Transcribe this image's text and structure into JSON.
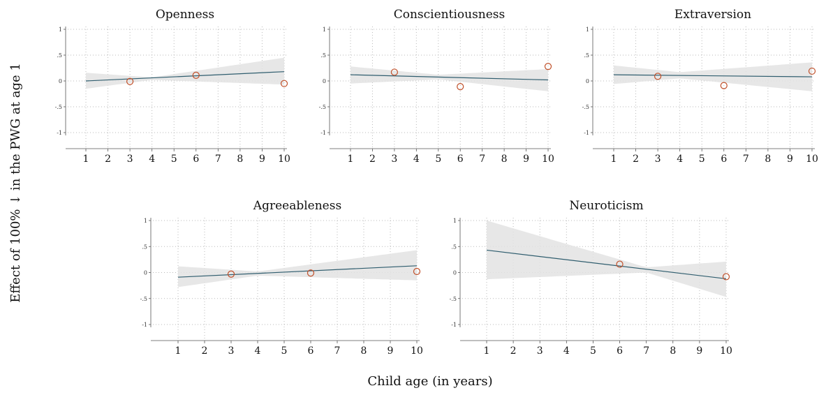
{
  "figure": {
    "ylabel": "Effect of 100% ↓ in the PWG at age 1",
    "xlabel": "Child age (in years)"
  },
  "colors": {
    "band": "#e3e3e3",
    "line": "#2f5d6e",
    "marker": "#c0502a",
    "grid": "#b9b9b9",
    "axis": "#555555"
  },
  "chart_data": [
    {
      "type": "line",
      "title": "Openness",
      "x_ticks": [
        1,
        2,
        3,
        4,
        5,
        6,
        7,
        8,
        9,
        10
      ],
      "y_ticks": [
        1,
        0.5,
        0,
        -0.5,
        -1
      ],
      "y_tick_labels": [
        "1",
        ".5",
        "0",
        "-.5",
        "-1"
      ],
      "xlim": [
        1,
        10
      ],
      "ylim": [
        -1,
        1
      ],
      "grid": true,
      "fit": {
        "x": [
          1,
          10
        ],
        "y": [
          0.0,
          0.18
        ]
      },
      "ci": {
        "x": [
          1,
          4,
          10
        ],
        "lower": [
          -0.15,
          0.02,
          -0.07
        ],
        "upper": [
          0.16,
          0.07,
          0.45
        ]
      },
      "points": {
        "x": [
          3,
          6,
          10
        ],
        "y": [
          -0.01,
          0.11,
          -0.05
        ]
      }
    },
    {
      "type": "line",
      "title": "Conscientiousness",
      "x_ticks": [
        1,
        2,
        3,
        4,
        5,
        6,
        7,
        8,
        9,
        10
      ],
      "y_ticks": [
        1,
        0.5,
        0,
        -0.5,
        -1
      ],
      "y_tick_labels": [
        "1",
        ".5",
        "0",
        "-.5",
        "-1"
      ],
      "xlim": [
        1,
        10
      ],
      "ylim": [
        -1,
        1
      ],
      "grid": true,
      "fit": {
        "x": [
          1,
          10
        ],
        "y": [
          0.12,
          0.02
        ]
      },
      "ci": {
        "x": [
          1,
          5,
          10
        ],
        "lower": [
          -0.05,
          0.03,
          -0.2
        ],
        "upper": [
          0.28,
          0.12,
          0.23
        ]
      },
      "points": {
        "x": [
          3,
          6,
          10
        ],
        "y": [
          0.17,
          -0.11,
          0.28
        ]
      }
    },
    {
      "type": "line",
      "title": "Extraversion",
      "x_ticks": [
        1,
        2,
        3,
        4,
        5,
        6,
        7,
        8,
        9,
        10
      ],
      "y_ticks": [
        1,
        0.5,
        0,
        -0.5,
        -1
      ],
      "y_tick_labels": [
        "1",
        ".5",
        "0",
        "-.5",
        "-1"
      ],
      "xlim": [
        1,
        10
      ],
      "ylim": [
        -1,
        1
      ],
      "grid": true,
      "fit": {
        "x": [
          1,
          10
        ],
        "y": [
          0.12,
          0.08
        ]
      },
      "ci": {
        "x": [
          1,
          4,
          10
        ],
        "lower": [
          -0.06,
          0.05,
          -0.2
        ],
        "upper": [
          0.3,
          0.17,
          0.36
        ]
      },
      "points": {
        "x": [
          3,
          6,
          10
        ],
        "y": [
          0.09,
          -0.09,
          0.19
        ]
      }
    },
    {
      "type": "line",
      "title": "Agreeableness",
      "x_ticks": [
        1,
        2,
        3,
        4,
        5,
        6,
        7,
        8,
        9,
        10
      ],
      "y_ticks": [
        1,
        0.5,
        0,
        -0.5,
        -1
      ],
      "y_tick_labels": [
        "1",
        ".5",
        "0",
        "-.5",
        "-1"
      ],
      "xlim": [
        1,
        10
      ],
      "ylim": [
        -1,
        1
      ],
      "grid": true,
      "fit": {
        "x": [
          1,
          10
        ],
        "y": [
          -0.09,
          0.13
        ]
      },
      "ci": {
        "x": [
          1,
          4,
          10
        ],
        "lower": [
          -0.28,
          -0.06,
          -0.15
        ],
        "upper": [
          0.12,
          0.02,
          0.43
        ]
      },
      "points": {
        "x": [
          3,
          6,
          10
        ],
        "y": [
          -0.03,
          -0.01,
          0.02
        ]
      }
    },
    {
      "type": "line",
      "title": "Neuroticism",
      "x_ticks": [
        1,
        2,
        3,
        4,
        5,
        6,
        7,
        8,
        9,
        10
      ],
      "y_ticks": [
        1,
        0.5,
        0,
        -0.5,
        -1
      ],
      "y_tick_labels": [
        "1",
        ".5",
        "0",
        "-.5",
        "-1"
      ],
      "xlim": [
        1,
        10
      ],
      "ylim": [
        -1,
        1
      ],
      "grid": true,
      "fit": {
        "x": [
          1,
          10
        ],
        "y": [
          0.43,
          -0.12
        ]
      },
      "ci": {
        "x": [
          1,
          7,
          10
        ],
        "lower": [
          -0.13,
          0.0,
          -0.47
        ],
        "upper": [
          1.0,
          0.1,
          0.21
        ]
      },
      "points": {
        "x": [
          3,
          6,
          10
        ],
        "y": [
          null,
          0.16,
          -0.08
        ]
      }
    }
  ]
}
